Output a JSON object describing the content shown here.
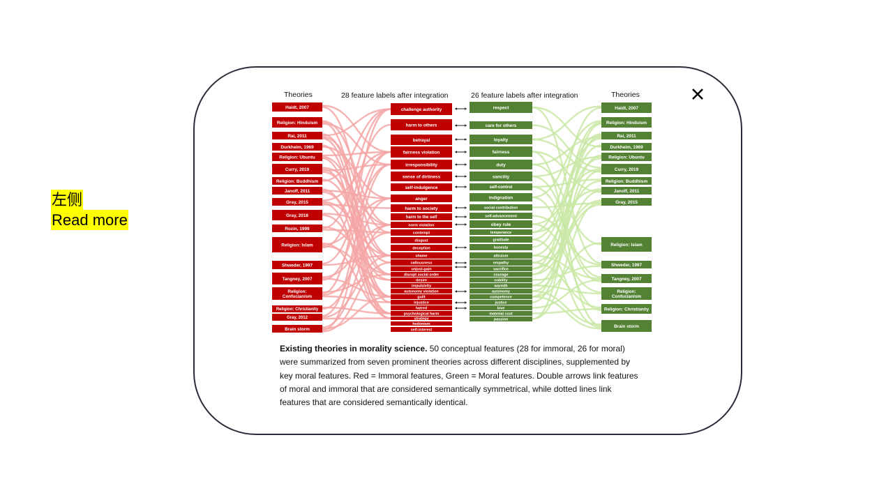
{
  "side_link": {
    "line1": "左侧",
    "line2": "Read more"
  },
  "modal": {
    "close_label": "×"
  },
  "figure": {
    "headers": {
      "theories_left": "Theories",
      "immoral_col": "28 feature labels after integration",
      "moral_col": "26 feature labels after integration",
      "theories_right": "Theories"
    },
    "left_theories": [
      "Haidt, 2007",
      "Religion: Hinduism",
      "Rai, 2011",
      "Durkheim, 1969",
      "Religion: Ubuntu",
      "Curry, 2019",
      "Religion: Buddhism",
      "Janoff, 2011",
      "Gray, 2015",
      "Gray, 2018",
      "Rozin, 1999",
      "Religion: Islam",
      "Shweder, 1997",
      "Tangney, 2007",
      "Religion: Confucianism",
      "Religion: Christianity",
      "Gray, 2012",
      "Brain storm"
    ],
    "right_theories": [
      "Haidt, 2007",
      "Religion: Hinduism",
      "Rai, 2011",
      "Durkheim, 1969",
      "Religion: Ubuntu",
      "Curry, 2019",
      "Religion: Buddhism",
      "Janoff, 2011",
      "Gray, 2015",
      "Religion: Islam",
      "Shweder, 1997",
      "Tangney, 2007",
      "Religion: Confucianism",
      "Religion: Christianity",
      "Brain storm"
    ],
    "immoral_features": [
      "challenge authority",
      "harm to others",
      "betrayal",
      "fairness violation",
      "irresponsibility",
      "sense of dirtiness",
      "self-indulgence",
      "anger",
      "harm to society",
      "harm to the self",
      "norm violation",
      "contempt",
      "disgust",
      "deception",
      "shame",
      "callousness",
      "unjust-gain",
      "disrupt social order",
      "desire",
      "impulsivity",
      "autonomy violation",
      "guilt",
      "injustice",
      "hatred",
      "psychological harm",
      "strategy",
      "hedonism",
      "self-interest"
    ],
    "moral_features": [
      "respect",
      "care for others",
      "loyalty",
      "fairness",
      "duty",
      "sanctity",
      "self-control",
      "indignation",
      "social contribution",
      "self-advancement",
      "obey rule",
      "temperance",
      "gratitude",
      "honesty",
      "altruism",
      "empathy",
      "sacrifice",
      "courage",
      "nobility",
      "warmth",
      "autonomy",
      "competence",
      "justice",
      "love",
      "material cost",
      "passion"
    ],
    "colors": {
      "immoral": "#c00000",
      "immoral_link": "#f4a6a6",
      "moral": "#548235",
      "moral_link": "#c9e8a4"
    }
  },
  "caption": {
    "bold": "Existing theories in morality science.",
    "text": " 50 conceptual features (28 for immoral, 26 for moral) were summarized from seven prominent theories across different disciplines, supplemented by key moral features. Red = Immoral features, Green = Moral features. Double arrows link features of moral and immoral that are considered semantically symmetrical, while dotted lines link features that are considered semantically identical."
  }
}
